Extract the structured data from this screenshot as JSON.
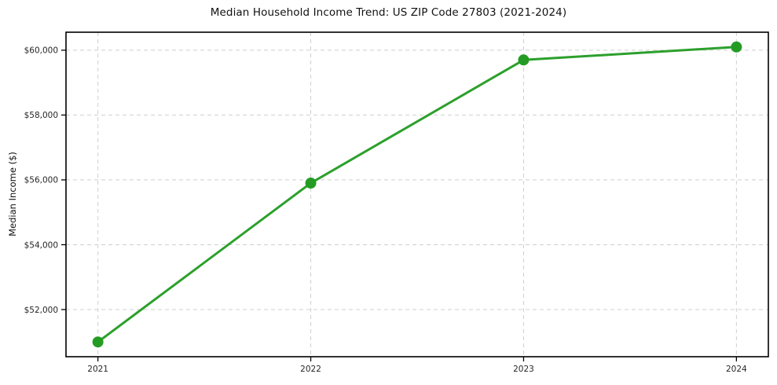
{
  "chart_data": {
    "type": "line",
    "title": "Median Household Income Trend: US ZIP Code 27803 (2021-2024)",
    "xlabel": "",
    "ylabel": "Median Income ($)",
    "x": [
      2021,
      2022,
      2023,
      2024
    ],
    "values": [
      51000,
      55900,
      59700,
      60100
    ],
    "xtick_labels": [
      "2021",
      "2022",
      "2023",
      "2024"
    ],
    "yticks": [
      52000,
      54000,
      56000,
      58000,
      60000
    ],
    "ytick_labels": [
      "$52,000",
      "$54,000",
      "$56,000",
      "$58,000",
      "$60,000"
    ],
    "xlim": [
      2020.85,
      2024.15
    ],
    "ylim": [
      50545,
      60555
    ],
    "grid": "dashed",
    "legend": "none",
    "colors": {
      "line": "#2ca02c",
      "marker": "#249c24",
      "grid": "#cfcfcf",
      "spine": "#000000",
      "tick_text": "#262626",
      "background": "#ffffff"
    }
  }
}
